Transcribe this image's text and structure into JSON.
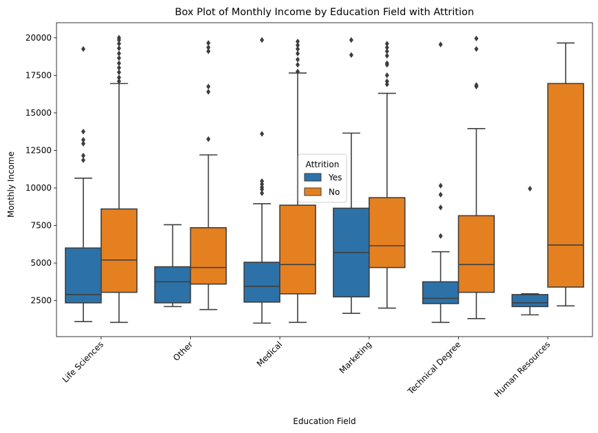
{
  "chart_data": {
    "type": "box",
    "title": "Box Plot of Monthly Income by Education Field with Attrition",
    "xlabel": "Education Field",
    "ylabel": "Monthly Income",
    "ylim": [
      100,
      21000
    ],
    "yticks": [
      2500,
      5000,
      7500,
      10000,
      12500,
      15000,
      17500,
      20000
    ],
    "categories": [
      "Life Sciences",
      "Other",
      "Medical",
      "Marketing",
      "Technical Degree",
      "Human Resources"
    ],
    "legend": {
      "title": "Attrition",
      "position": "center"
    },
    "series": [
      {
        "name": "Yes",
        "color": "#2c72a8",
        "boxes": [
          {
            "whisker_low": 1100,
            "q1": 2350,
            "median": 2900,
            "q3": 6000,
            "whisker_high": 10650,
            "outliers": [
              11850,
              12150,
              12950,
              13200,
              13750,
              19250
            ]
          },
          {
            "whisker_low": 2100,
            "q1": 2350,
            "median": 3750,
            "q3": 4750,
            "whisker_high": 7550,
            "outliers": []
          },
          {
            "whisker_low": 1000,
            "q1": 2400,
            "median": 3450,
            "q3": 5050,
            "whisker_high": 8950,
            "outliers": [
              9650,
              9900,
              10050,
              10250,
              10450,
              13600,
              19850
            ]
          },
          {
            "whisker_low": 1650,
            "q1": 2750,
            "median": 5700,
            "q3": 8650,
            "whisker_high": 13650,
            "outliers": [
              18850,
              19850
            ]
          },
          {
            "whisker_low": 1050,
            "q1": 2300,
            "median": 2650,
            "q3": 3750,
            "whisker_high": 5750,
            "outliers": [
              6800,
              8700,
              9550,
              10150,
              19550
            ]
          },
          {
            "whisker_low": 1550,
            "q1": 2100,
            "median": 2350,
            "q3": 2900,
            "whisker_high": 2950,
            "outliers": [
              9950
            ]
          }
        ]
      },
      {
        "name": "No",
        "color": "#e58021",
        "boxes": [
          {
            "whisker_low": 1050,
            "q1": 3050,
            "median": 5200,
            "q3": 8600,
            "whisker_high": 16950,
            "outliers": [
              17100,
              17350,
              17700,
              18000,
              18300,
              18650,
              18950,
              19300,
              19600,
              19850,
              20000
            ]
          },
          {
            "whisker_low": 1900,
            "q1": 3600,
            "median": 4700,
            "q3": 7350,
            "whisker_high": 12200,
            "outliers": [
              13250,
              16400,
              16750,
              19100,
              19350,
              19650
            ]
          },
          {
            "whisker_low": 1050,
            "q1": 2950,
            "median": 4900,
            "q3": 8850,
            "whisker_high": 17650,
            "outliers": [
              17750,
              18200,
              18550,
              18950,
              19250,
              19500,
              19750
            ]
          },
          {
            "whisker_low": 2000,
            "q1": 4700,
            "median": 6150,
            "q3": 9350,
            "whisker_high": 16300,
            "outliers": [
              16900,
              17100,
              17500,
              18200,
              18300,
              18800,
              19100,
              19350,
              19600
            ]
          },
          {
            "whisker_low": 1300,
            "q1": 3050,
            "median": 4900,
            "q3": 8150,
            "whisker_high": 13950,
            "outliers": [
              16750,
              16850,
              19250,
              19950
            ]
          },
          {
            "whisker_low": 2150,
            "q1": 3400,
            "median": 6200,
            "q3": 16950,
            "whisker_high": 19650,
            "outliers": []
          }
        ]
      }
    ]
  }
}
